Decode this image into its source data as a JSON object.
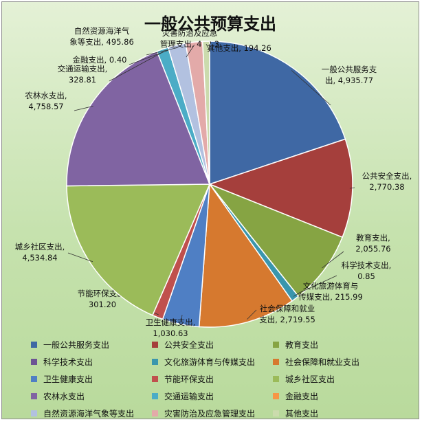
{
  "chart_data": {
    "type": "pie",
    "title": "一般公共预算支出",
    "slices": [
      {
        "name": "一般公共服务支出",
        "value": 4935.77,
        "color": "#3f68a4",
        "label": [
          "一般公共服务支",
          "出, 4,935.77"
        ]
      },
      {
        "name": "公共安全支出",
        "value": 2770.38,
        "color": "#a53f3c",
        "label": [
          "公共安全支出,",
          "2,770.38"
        ]
      },
      {
        "name": "教育支出",
        "value": 2055.76,
        "color": "#86a443",
        "label": [
          "教育支出,",
          "2,055.76"
        ]
      },
      {
        "name": "科学技术支出",
        "value": 0.85,
        "color": "#6c5394",
        "label": [
          "科学技术支出,",
          "0.85"
        ]
      },
      {
        "name": "文化旅游体育与传媒支出",
        "value": 215.99,
        "color": "#3a96ad",
        "label": [
          "文化旅游体育与",
          "传媒支出, 215.99"
        ]
      },
      {
        "name": "社会保障和就业支出",
        "value": 2719.55,
        "color": "#d6792f",
        "label": [
          "社会保障和就业",
          "支出, 2,719.55"
        ]
      },
      {
        "name": "卫生健康支出",
        "value": 1030.63,
        "color": "#4f7fc4",
        "label": [
          "卫生健康支出,",
          "1,030.63"
        ]
      },
      {
        "name": "节能环保支出",
        "value": 301.2,
        "color": "#c0504d",
        "label": [
          "节能环保支出,",
          "301.20"
        ]
      },
      {
        "name": "城乡社区支出",
        "value": 4534.84,
        "color": "#9bbb59",
        "label": [
          "城乡社区支出,",
          "4,534.84"
        ]
      },
      {
        "name": "农林水支出",
        "value": 4758.57,
        "color": "#8064a2",
        "label": [
          "农林水支出,",
          "4,758.57"
        ]
      },
      {
        "name": "交通运输支出",
        "value": 328.81,
        "color": "#4bacc6",
        "label": [
          "交通运输支出,",
          "328.81"
        ]
      },
      {
        "name": "金融支出",
        "value": 0.4,
        "color": "#f79646",
        "label": [
          "金融支出, 0.40"
        ]
      },
      {
        "name": "自然资源海洋气象等支出",
        "value": 495.86,
        "color": "#b2c1e0",
        "label": [
          "自然资源海洋气",
          "象等支出, 495.86"
        ]
      },
      {
        "name": "灾害防治及应急管理支出",
        "value": 472.3,
        "color": "#e3aaa9",
        "label": [
          "灾害防治及应急",
          "管理支出, 472.3"
        ]
      },
      {
        "name": "其他支出",
        "value": 194.26,
        "color": "#cbdbad",
        "label": [
          "其他支出, 194.26"
        ]
      }
    ]
  }
}
